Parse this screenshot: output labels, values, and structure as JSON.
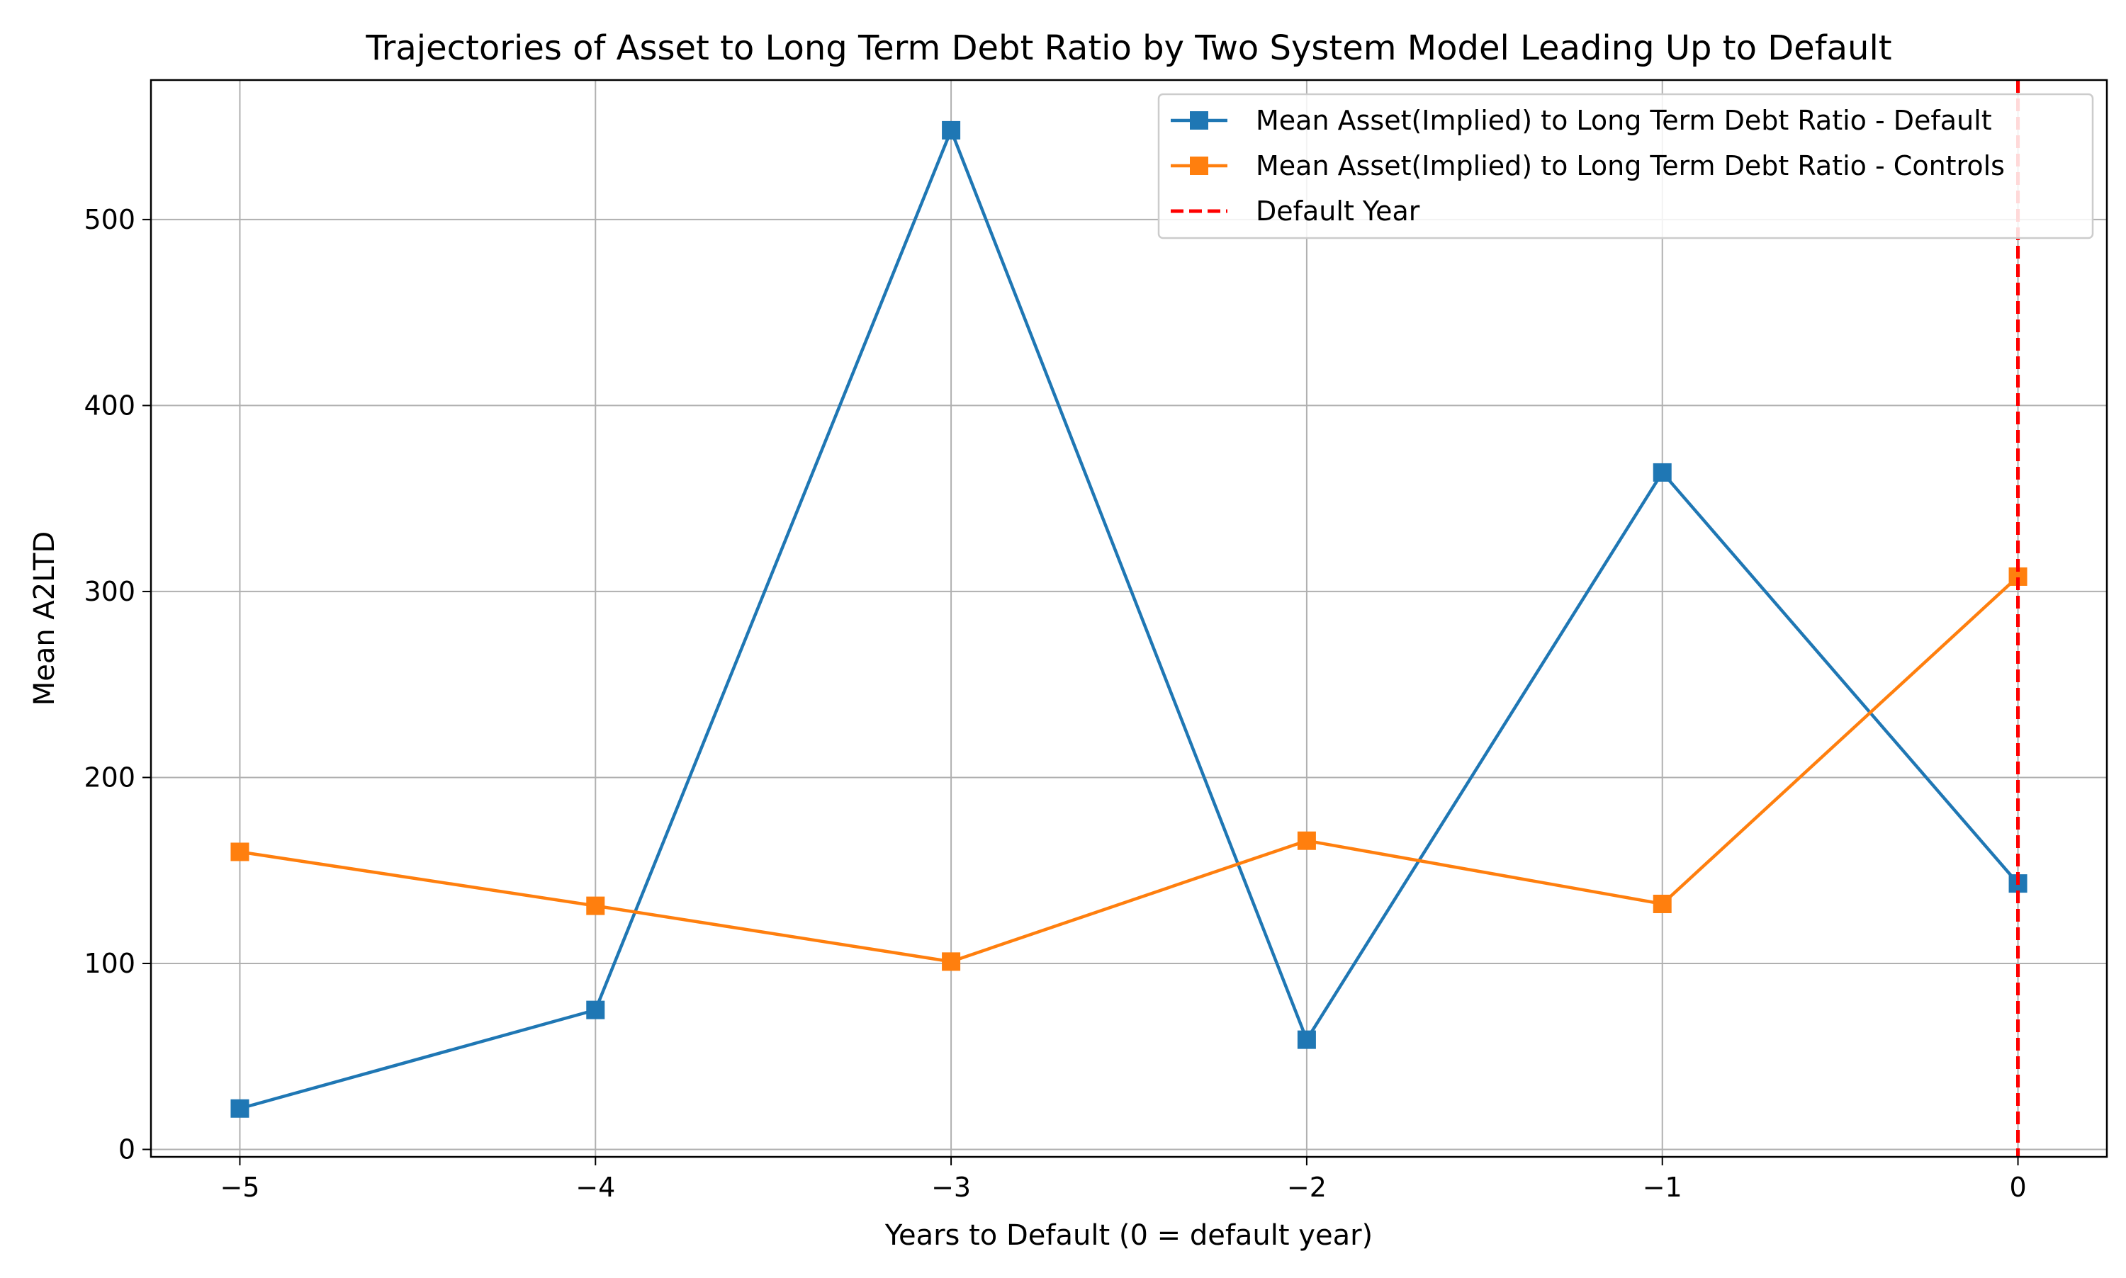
{
  "chart_data": {
    "type": "line",
    "title": "Trajectories of Asset to Long Term Debt Ratio by Two System Model Leading Up to Default",
    "xlabel": "Years to Default (0 = default year)",
    "ylabel": "Mean A2LTD",
    "x": [
      -5,
      -4,
      -3,
      -2,
      -1,
      0
    ],
    "x_tick_labels": [
      "−5",
      "−4",
      "−3",
      "−2",
      "−1",
      "0"
    ],
    "y_ticks": [
      0,
      100,
      200,
      300,
      400,
      500
    ],
    "y_tick_labels": [
      "0",
      "100",
      "200",
      "300",
      "400",
      "500"
    ],
    "xlim": [
      -5.25,
      0.25
    ],
    "ylim": [
      -4,
      575
    ],
    "grid": true,
    "legend_position": "upper right",
    "series": [
      {
        "name": "Mean Asset(Implied) to Long Term Debt Ratio - Default",
        "color": "#1f77b4",
        "marker": "square",
        "values": [
          22,
          75,
          548,
          59,
          364,
          143
        ]
      },
      {
        "name": "Mean Asset(Implied) to Long Term Debt Ratio - Controls",
        "color": "#ff7f0e",
        "marker": "square",
        "values": [
          160,
          131,
          101,
          166,
          132,
          308
        ]
      }
    ],
    "reference_line": {
      "name": "Default Year",
      "x": 0,
      "color": "#ff0000",
      "style": "dashed"
    }
  }
}
